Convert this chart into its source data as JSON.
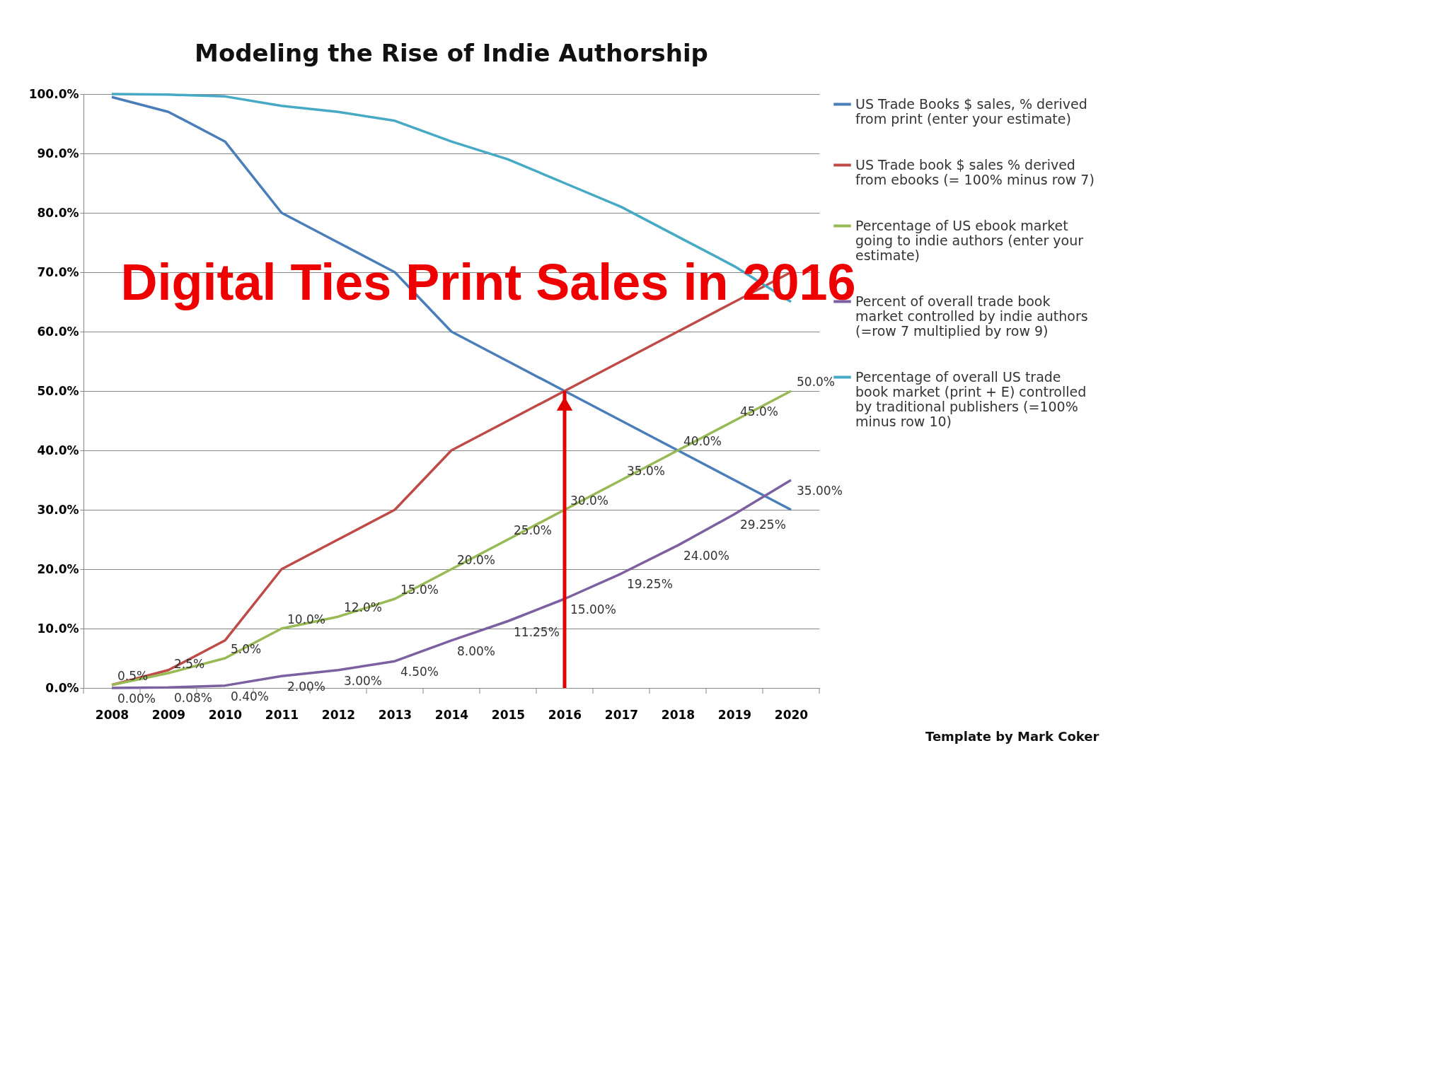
{
  "chart_data": {
    "type": "line",
    "title": "Modeling the Rise of Indie Authorship",
    "categories": [
      "2008",
      "2009",
      "2010",
      "2011",
      "2012",
      "2013",
      "2014",
      "2015",
      "2016",
      "2017",
      "2018",
      "2019",
      "2020"
    ],
    "series": [
      {
        "name": "US Trade Books $ sales, % derived from print (enter your estimate)",
        "color": "#4a7ebb",
        "values": [
          99.5,
          97,
          92,
          80,
          75,
          70,
          60,
          55,
          50,
          45,
          40,
          35,
          30
        ]
      },
      {
        "name": "US Trade book $ sales % derived from ebooks (= 100% minus row 7)",
        "color": "#be4b48",
        "values": [
          0.5,
          3,
          8,
          20,
          25,
          30,
          40,
          45,
          50,
          55,
          60,
          65,
          70
        ]
      },
      {
        "name": "Percentage of US ebook market going to indie authors (enter your estimate)",
        "color": "#98b954",
        "values": [
          0.5,
          2.5,
          5,
          10,
          12,
          15,
          20,
          25,
          30,
          35,
          40,
          45,
          50
        ],
        "value_labels": [
          "0.5%",
          "2.5%",
          "5.0%",
          "10.0%",
          "12.0%",
          "15.0%",
          "20.0%",
          "25.0%",
          "30.0%",
          "35.0%",
          "40.0%",
          "45.0%",
          "50.0%"
        ]
      },
      {
        "name": "Percent of overall trade book market controlled by indie authors (=row 7 multiplied by row 9)",
        "color": "#7d60a0",
        "values": [
          0,
          0.08,
          0.4,
          2,
          3,
          4.5,
          8,
          11.25,
          15,
          19.25,
          24,
          29.25,
          35
        ],
        "value_labels": [
          "0.00%",
          "0.08%",
          "0.40%",
          "2.00%",
          "3.00%",
          "4.50%",
          "8.00%",
          "11.25%",
          "15.00%",
          "19.25%",
          "24.00%",
          "29.25%",
          "35.00%"
        ]
      },
      {
        "name": "Percentage of overall US trade book market (print + E) controlled by traditional publishers (=100% minus row 10)",
        "color": "#46aac5",
        "values": [
          100,
          99.9,
          99.6,
          98,
          97,
          95.5,
          92,
          89,
          85,
          81,
          76,
          71,
          65
        ]
      }
    ],
    "ylim": [
      0,
      100
    ],
    "yticks": [
      {
        "value": 0,
        "label": "0.0%"
      },
      {
        "value": 10,
        "label": "10.0%"
      },
      {
        "value": 20,
        "label": "20.0%"
      },
      {
        "value": 30,
        "label": "30.0%"
      },
      {
        "value": 40,
        "label": "40.0%"
      },
      {
        "value": 50,
        "label": "50.0%"
      },
      {
        "value": 60,
        "label": "60.0%"
      },
      {
        "value": 70,
        "label": "70.0%"
      },
      {
        "value": 80,
        "label": "80.0%"
      },
      {
        "value": 90,
        "label": "90.0%"
      },
      {
        "value": 100,
        "label": "100.0%"
      }
    ],
    "grid": "y",
    "legend": "right",
    "marker": "none",
    "line_style": "solid",
    "annotations": [
      {
        "text": "Digital Ties Print Sales  in 2016",
        "x": "2016",
        "y": 50
      },
      "Template by Mark Coker"
    ]
  }
}
